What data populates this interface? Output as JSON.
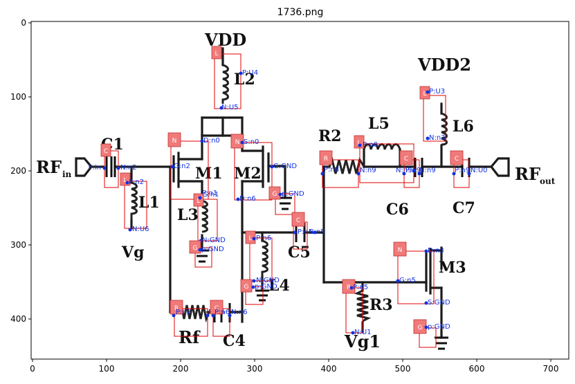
{
  "figure": {
    "title": "1736.png",
    "x_ticks": [
      "0",
      "100",
      "200",
      "300",
      "400",
      "500",
      "600",
      "700"
    ],
    "y_ticks": [
      "0",
      "100",
      "200",
      "300",
      "400"
    ]
  },
  "schematic_labels": [
    {
      "id": "vdd",
      "text": "VDD"
    },
    {
      "id": "vdd2",
      "text": "VDD2"
    },
    {
      "id": "l2",
      "text": "L2"
    },
    {
      "id": "l5",
      "text": "L5"
    },
    {
      "id": "l6",
      "text": "L6"
    },
    {
      "id": "c1",
      "text": "C1"
    },
    {
      "id": "rfin",
      "text": "RF"
    },
    {
      "id": "rfin_sub",
      "text": "in"
    },
    {
      "id": "m1",
      "text": "M1"
    },
    {
      "id": "m2",
      "text": "M2"
    },
    {
      "id": "r2",
      "text": "R2"
    },
    {
      "id": "l1",
      "text": "L1"
    },
    {
      "id": "l3",
      "text": "L3"
    },
    {
      "id": "c6",
      "text": "C6"
    },
    {
      "id": "c7",
      "text": "C7"
    },
    {
      "id": "rfout",
      "text": "RF"
    },
    {
      "id": "rfout_sub",
      "text": "out"
    },
    {
      "id": "vg",
      "text": "Vg"
    },
    {
      "id": "c5",
      "text": "C5"
    },
    {
      "id": "m3",
      "text": "M3"
    },
    {
      "id": "l4",
      "text": "L4"
    },
    {
      "id": "r3",
      "text": "R3"
    },
    {
      "id": "rf",
      "text": "Rf"
    },
    {
      "id": "c4",
      "text": "C4"
    },
    {
      "id": "vg1",
      "text": "Vg1"
    }
  ],
  "components": [
    {
      "id": "L2",
      "type": "L",
      "pins": [
        "P:U4",
        "N:U5"
      ]
    },
    {
      "id": "L6",
      "type": "L",
      "pins": [
        "P:U3",
        "N:n3"
      ]
    },
    {
      "id": "L5",
      "type": "L",
      "pins": [
        "P:n0",
        "N:n9"
      ]
    },
    {
      "id": "C1",
      "type": "C",
      "pins": [
        "P:in",
        "N:n2"
      ]
    },
    {
      "id": "L1",
      "type": "L",
      "pins": [
        "P:n2",
        "N:U6"
      ]
    },
    {
      "id": "M1",
      "type": "N",
      "pins": [
        "D:n0",
        "G:n2",
        "S:n1"
      ]
    },
    {
      "id": "M2",
      "type": "N",
      "pins": [
        "D:n6",
        "G:GND",
        "S:n0"
      ]
    },
    {
      "id": "GND1",
      "type": "G",
      "pins": [
        "p:GND"
      ]
    },
    {
      "id": "R2",
      "type": "R",
      "pins": [
        "P:n8",
        "N:n9"
      ]
    },
    {
      "id": "C6",
      "type": "C",
      "pins": [
        "P:n9",
        "N:n9"
      ]
    },
    {
      "id": "C7",
      "type": "C",
      "pins": [
        "P:n9",
        "N:U0"
      ]
    },
    {
      "id": "L3",
      "type": "L",
      "pins": [
        "P:n1",
        "N:GND"
      ]
    },
    {
      "id": "GND2",
      "type": "G",
      "pins": [
        "p:GND"
      ]
    },
    {
      "id": "C5",
      "type": "C",
      "pins": [
        "P:n6",
        "N:n5"
      ]
    },
    {
      "id": "L4",
      "type": "L",
      "pins": [
        "P:n6",
        "N:GND"
      ]
    },
    {
      "id": "GND3",
      "type": "G",
      "pins": [
        "p:GND"
      ]
    },
    {
      "id": "M3",
      "type": "N",
      "pins": [
        "D:n3",
        "G:n5",
        "S:GND"
      ]
    },
    {
      "id": "R3",
      "type": "R",
      "pins": [
        "P:n5",
        "N:U1"
      ]
    },
    {
      "id": "GND4",
      "type": "G",
      "pins": [
        "p:GND"
      ]
    },
    {
      "id": "Rf",
      "type": "R",
      "pins": [
        "P:n2",
        "N:n6"
      ]
    },
    {
      "id": "C4",
      "type": "C",
      "pins": [
        "P:n6",
        "N:n6"
      ]
    },
    {
      "id": "GND5",
      "type": "G",
      "pins": [
        "p:GND"
      ]
    }
  ]
}
